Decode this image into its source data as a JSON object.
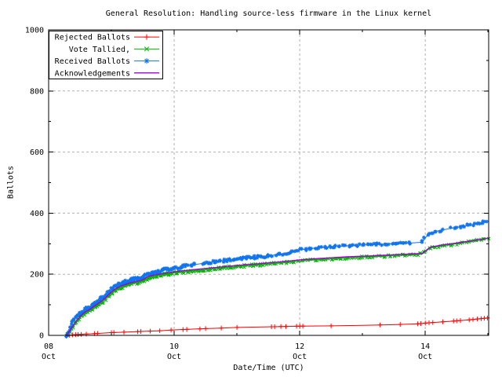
{
  "page": {
    "background": "#ffffff"
  },
  "chart_data": {
    "type": "line",
    "title": "General Resolution: Handling source-less firmware in the Linux kernel",
    "xlabel": "Date/Time (UTC)",
    "ylabel": "Ballots",
    "ylim": [
      0,
      1000
    ],
    "y_major_tick_step": 200,
    "y_minor_tick_step": 100,
    "y_tick_labels": [
      "0",
      "200",
      "400",
      "600",
      "800",
      "1000"
    ],
    "x_axis": {
      "min_day": 0,
      "max_day": 7.01,
      "major_ticks": [
        {
          "day": 0,
          "label_line1": "08",
          "label_line2": "Oct"
        },
        {
          "day": 2,
          "label_line1": "10",
          "label_line2": "Oct"
        },
        {
          "day": 4,
          "label_line1": "12",
          "label_line2": "Oct"
        },
        {
          "day": 6,
          "label_line1": "14",
          "label_line2": "Oct"
        }
      ],
      "minor_tick_days": [
        1,
        3,
        5,
        7
      ]
    },
    "grid": {
      "show": true,
      "color": "#b0b0b0",
      "dash": "3,3"
    },
    "legend": {
      "position": "top-left",
      "boxed": true
    },
    "frame_color": "#000000",
    "series": [
      {
        "name": "Rejected Ballots",
        "color": "#ff0000",
        "marker": "plus",
        "marker_mode": "explicit",
        "points": [
          [
            0.3,
            0
          ],
          [
            0.4,
            2
          ],
          [
            0.5,
            3
          ],
          [
            0.75,
            6
          ],
          [
            1.0,
            9
          ],
          [
            1.25,
            11
          ],
          [
            1.5,
            13
          ],
          [
            1.75,
            15
          ],
          [
            2.0,
            18
          ],
          [
            2.5,
            22
          ],
          [
            2.75,
            24
          ],
          [
            3.0,
            26
          ],
          [
            3.5,
            28
          ],
          [
            4.0,
            30
          ],
          [
            4.5,
            31
          ],
          [
            5.0,
            33
          ],
          [
            5.5,
            35
          ],
          [
            5.9,
            38
          ],
          [
            6.1,
            42
          ],
          [
            6.4,
            46
          ],
          [
            6.7,
            51
          ],
          [
            7.0,
            57
          ]
        ],
        "marker_days": [
          0.33,
          0.38,
          0.43,
          0.47,
          0.52,
          0.6,
          0.73,
          0.78,
          1.0,
          1.04,
          1.2,
          1.42,
          1.47,
          1.62,
          1.77,
          1.95,
          2.14,
          2.2,
          2.41,
          2.5,
          2.75,
          3.0,
          3.55,
          3.6,
          3.7,
          3.78,
          3.95,
          4.0,
          4.05,
          4.5,
          5.28,
          5.6,
          5.88,
          5.93,
          6.0,
          6.06,
          6.12,
          6.28,
          6.45,
          6.5,
          6.56,
          6.7,
          6.76,
          6.83,
          6.89,
          6.94,
          6.99
        ]
      },
      {
        "name": "Vote Tallied,",
        "color": "#00b400",
        "marker": "cross",
        "marker_mode": "dense",
        "points": [
          [
            0.28,
            0
          ],
          [
            0.33,
            10
          ],
          [
            0.38,
            25
          ],
          [
            0.45,
            45
          ],
          [
            0.5,
            58
          ],
          [
            0.55,
            68
          ],
          [
            0.6,
            75
          ],
          [
            0.65,
            80
          ],
          [
            0.7,
            88
          ],
          [
            0.75,
            95
          ],
          [
            0.8,
            102
          ],
          [
            0.85,
            110
          ],
          [
            0.9,
            118
          ],
          [
            0.95,
            128
          ],
          [
            1.0,
            138
          ],
          [
            1.05,
            146
          ],
          [
            1.1,
            152
          ],
          [
            1.15,
            157
          ],
          [
            1.2,
            161
          ],
          [
            1.3,
            168
          ],
          [
            1.4,
            172
          ],
          [
            1.5,
            178
          ],
          [
            1.6,
            190
          ],
          [
            1.75,
            196
          ],
          [
            2.0,
            204
          ],
          [
            2.25,
            210
          ],
          [
            2.5,
            215
          ],
          [
            2.75,
            220
          ],
          [
            3.0,
            225
          ],
          [
            3.25,
            229
          ],
          [
            3.5,
            233
          ],
          [
            3.75,
            238
          ],
          [
            4.0,
            243
          ],
          [
            4.25,
            247
          ],
          [
            4.5,
            250
          ],
          [
            4.75,
            253
          ],
          [
            5.0,
            256
          ],
          [
            5.25,
            258
          ],
          [
            5.5,
            261
          ],
          [
            5.75,
            263
          ],
          [
            5.95,
            266
          ],
          [
            6.08,
            286
          ],
          [
            6.25,
            292
          ],
          [
            6.5,
            300
          ],
          [
            6.75,
            308
          ],
          [
            7.0,
            318
          ]
        ]
      },
      {
        "name": "Received Ballots",
        "color": "#0f74ee",
        "marker": "star",
        "marker_mode": "dense",
        "marker_gap_days": [
          [
            2.34,
            2.44
          ],
          [
            5.78,
            5.93
          ],
          [
            6.27,
            6.4
          ]
        ],
        "points": [
          [
            0.28,
            0
          ],
          [
            0.32,
            12
          ],
          [
            0.36,
            30
          ],
          [
            0.4,
            50
          ],
          [
            0.45,
            62
          ],
          [
            0.5,
            72
          ],
          [
            0.55,
            80
          ],
          [
            0.6,
            86
          ],
          [
            0.65,
            92
          ],
          [
            0.7,
            100
          ],
          [
            0.75,
            108
          ],
          [
            0.8,
            115
          ],
          [
            0.85,
            122
          ],
          [
            0.9,
            130
          ],
          [
            0.95,
            140
          ],
          [
            1.0,
            152
          ],
          [
            1.05,
            159
          ],
          [
            1.1,
            165
          ],
          [
            1.15,
            170
          ],
          [
            1.2,
            174
          ],
          [
            1.3,
            181
          ],
          [
            1.4,
            185
          ],
          [
            1.5,
            191
          ],
          [
            1.55,
            198
          ],
          [
            1.6,
            203
          ],
          [
            1.7,
            208
          ],
          [
            1.8,
            212
          ],
          [
            1.9,
            216
          ],
          [
            2.0,
            220
          ],
          [
            2.2,
            228
          ],
          [
            2.4,
            234
          ],
          [
            2.6,
            240
          ],
          [
            2.8,
            245
          ],
          [
            3.0,
            250
          ],
          [
            3.25,
            255
          ],
          [
            3.5,
            260
          ],
          [
            3.75,
            268
          ],
          [
            4.0,
            280
          ],
          [
            4.25,
            286
          ],
          [
            4.5,
            290
          ],
          [
            4.75,
            293
          ],
          [
            5.0,
            296
          ],
          [
            5.25,
            298
          ],
          [
            5.5,
            300
          ],
          [
            5.75,
            302
          ],
          [
            5.95,
            305
          ],
          [
            6.05,
            332
          ],
          [
            6.2,
            342
          ],
          [
            6.4,
            350
          ],
          [
            6.6,
            357
          ],
          [
            6.8,
            364
          ],
          [
            7.0,
            375
          ]
        ]
      },
      {
        "name": "Acknowledgements",
        "color": "#a000d0",
        "marker": "none",
        "marker_mode": "none",
        "line_width": 1.4,
        "points": [
          [
            0.28,
            0
          ],
          [
            0.33,
            13
          ],
          [
            0.38,
            29
          ],
          [
            0.45,
            49
          ],
          [
            0.5,
            62
          ],
          [
            0.55,
            72
          ],
          [
            0.6,
            79
          ],
          [
            0.65,
            84
          ],
          [
            0.7,
            92
          ],
          [
            0.75,
            99
          ],
          [
            0.8,
            106
          ],
          [
            0.85,
            114
          ],
          [
            0.9,
            122
          ],
          [
            0.95,
            132
          ],
          [
            1.0,
            142
          ],
          [
            1.05,
            150
          ],
          [
            1.1,
            156
          ],
          [
            1.15,
            161
          ],
          [
            1.2,
            165
          ],
          [
            1.3,
            172
          ],
          [
            1.4,
            176
          ],
          [
            1.5,
            182
          ],
          [
            1.6,
            194
          ],
          [
            1.75,
            200
          ],
          [
            2.0,
            208
          ],
          [
            2.25,
            214
          ],
          [
            2.5,
            219
          ],
          [
            2.75,
            224
          ],
          [
            3.0,
            229
          ],
          [
            3.25,
            233
          ],
          [
            3.5,
            237
          ],
          [
            3.75,
            242
          ],
          [
            4.0,
            247
          ],
          [
            4.25,
            251
          ],
          [
            4.5,
            254
          ],
          [
            4.75,
            257
          ],
          [
            5.0,
            259
          ],
          [
            5.25,
            261
          ],
          [
            5.5,
            264
          ],
          [
            5.75,
            266
          ],
          [
            5.95,
            268
          ],
          [
            6.08,
            289
          ],
          [
            6.25,
            295
          ],
          [
            6.5,
            302
          ],
          [
            6.75,
            310
          ],
          [
            7.0,
            318
          ]
        ]
      }
    ]
  }
}
